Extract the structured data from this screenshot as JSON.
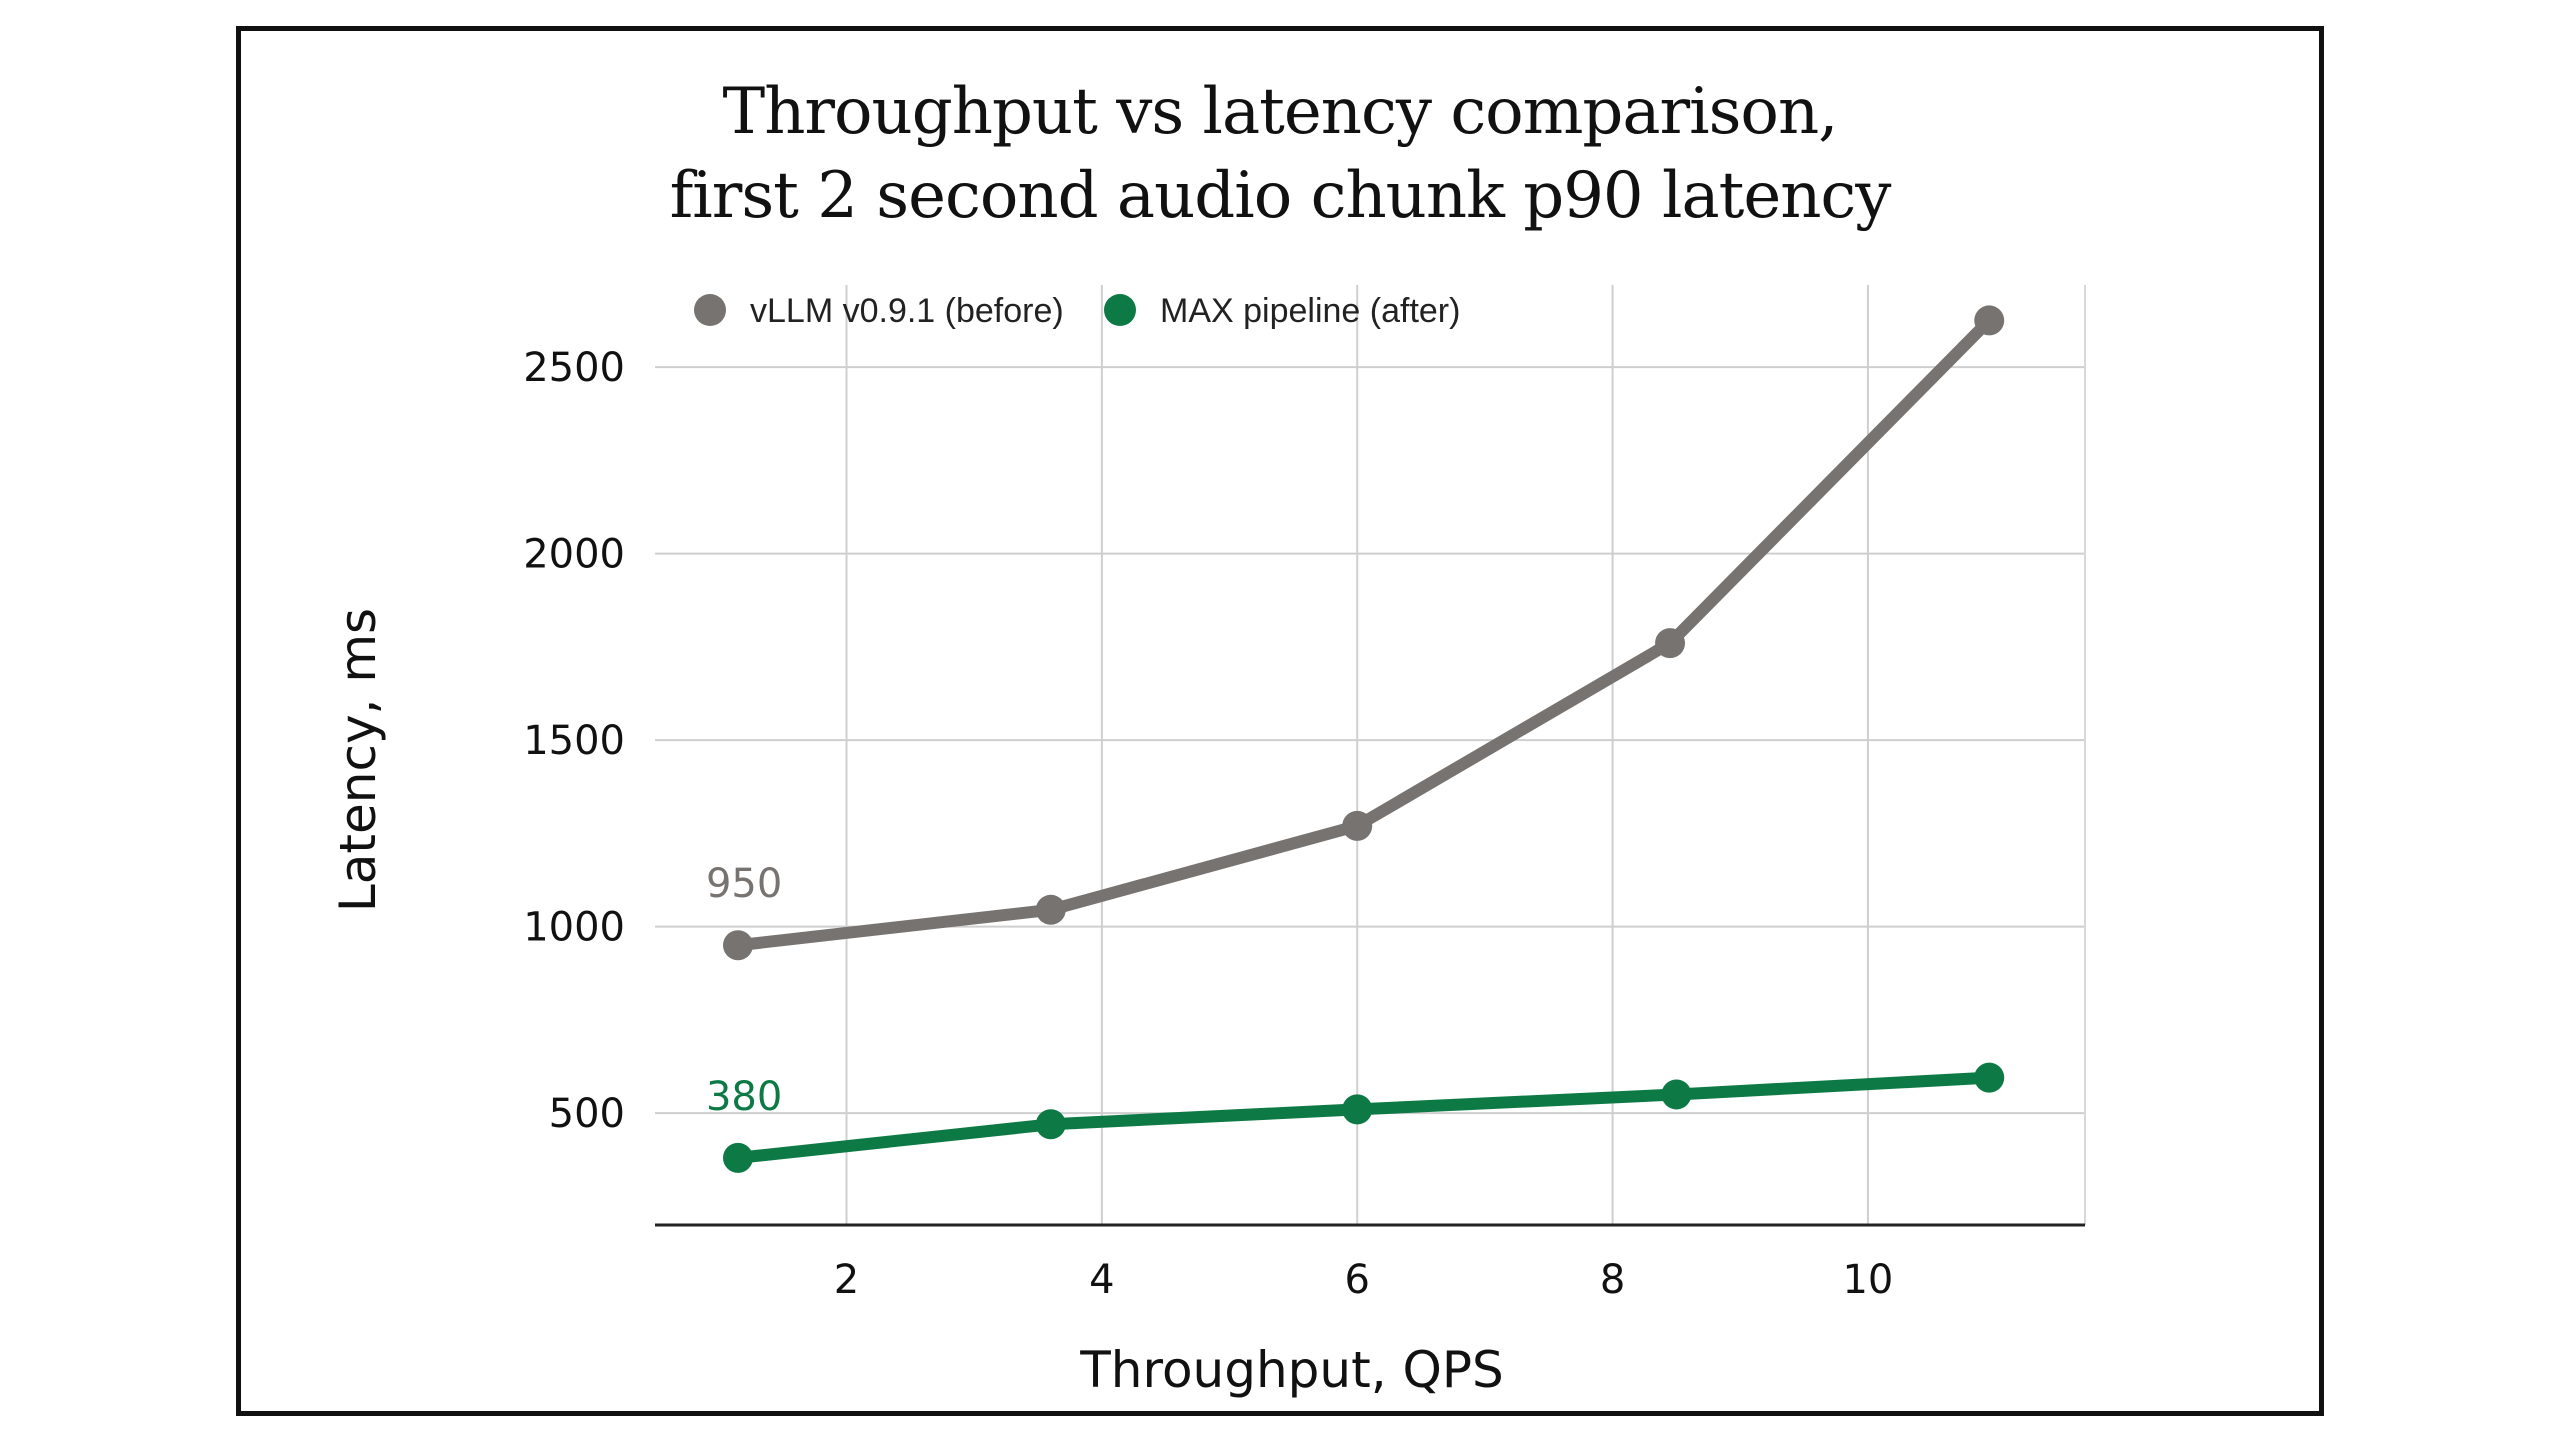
{
  "chart_data": {
    "type": "line",
    "title": "Throughput vs latency comparison,",
    "subtitle": "first 2 second audio chunk p90 latency",
    "xlabel": "Throughput, QPS",
    "ylabel": "Latency, ms",
    "xlim": [
      0.5,
      11.7
    ],
    "ylim": [
      200,
      2720
    ],
    "xticks": [
      2,
      4,
      6,
      8,
      10
    ],
    "yticks": [
      500,
      1000,
      1500,
      2000,
      2500
    ],
    "grid": true,
    "legend_position": "top-left",
    "series": [
      {
        "name": "vLLM v0.9.1 (before)",
        "color": "#777370",
        "x": [
          1.15,
          3.6,
          6.0,
          8.45,
          10.95
        ],
        "y": [
          950,
          1045,
          1270,
          1760,
          2625
        ],
        "label": "950"
      },
      {
        "name": "MAX pipeline (after)",
        "color": "#0d7a45",
        "x": [
          1.15,
          3.6,
          6.0,
          8.5,
          10.95
        ],
        "y": [
          380,
          470,
          510,
          550,
          595
        ],
        "label": "380"
      }
    ]
  }
}
